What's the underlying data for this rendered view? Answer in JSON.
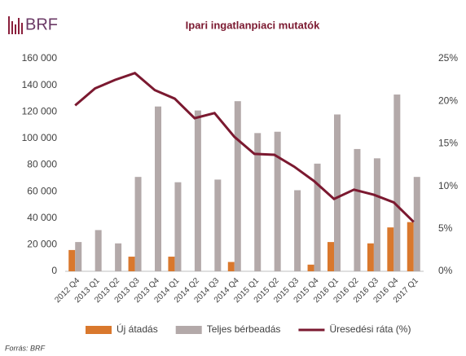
{
  "logo": "BRF",
  "chart_data": {
    "type": "combo",
    "title": "Ipari ingatlanpiaci mutatók",
    "source": "Forrás: BRF",
    "categories": [
      "2012 Q4",
      "2013 Q1",
      "2013 Q2",
      "2013 Q3",
      "2013 Q4",
      "2014 Q1",
      "2014 Q2",
      "2014 Q3",
      "2014 Q4",
      "2015 Q1",
      "2015 Q2",
      "2015 Q3",
      "2015 Q4",
      "2016 Q1",
      "2016 Q2",
      "2016 Q3",
      "2016 Q4",
      "2017 Q1"
    ],
    "series": [
      {
        "name": "Új átadás",
        "kind": "bar",
        "color": "#d9782d",
        "values": [
          16000,
          0,
          0,
          11000,
          0,
          11000,
          0,
          0,
          7000,
          0,
          0,
          0,
          5000,
          22000,
          0,
          21000,
          33000,
          37000
        ]
      },
      {
        "name": "Teljes bérbeadás",
        "kind": "bar",
        "color": "#b3a9a9",
        "values": [
          22000,
          31000,
          21000,
          71000,
          124000,
          67000,
          121000,
          69000,
          128000,
          104000,
          105000,
          61000,
          81000,
          118000,
          92000,
          85000,
          133000,
          71000
        ]
      },
      {
        "name": "Üresedési ráta (%)",
        "kind": "line",
        "axis": "y2",
        "color": "#7b1930",
        "values": [
          19.5,
          21.5,
          22.5,
          23.3,
          21.3,
          20.3,
          18,
          18.6,
          15.8,
          13.8,
          13.7,
          12.3,
          10.6,
          8.5,
          9.6,
          9,
          8.1,
          5.8
        ]
      }
    ],
    "ylim": [
      0,
      160000
    ],
    "yticks": [
      0,
      {
        "value": 20000,
        "label": "20 000"
      },
      {
        "value": 40000,
        "label": "40 000"
      },
      {
        "value": 60000,
        "label": "60 000"
      },
      {
        "value": 80000,
        "label": "80 000"
      },
      {
        "value": 100000,
        "label": "100 000"
      },
      {
        "value": 120000,
        "label": "120 000"
      },
      {
        "value": 140000,
        "label": "140 000"
      },
      {
        "value": 160000,
        "label": "160 000"
      }
    ],
    "y2lim": [
      0,
      25
    ],
    "y2ticks": [
      {
        "value": 0,
        "label": "0%"
      },
      {
        "value": 5,
        "label": "5%"
      },
      {
        "value": 10,
        "label": "10%"
      },
      {
        "value": 15,
        "label": "15%"
      },
      {
        "value": 20,
        "label": "20%"
      },
      {
        "value": 25,
        "label": "25%"
      }
    ],
    "legend": "bottom"
  }
}
